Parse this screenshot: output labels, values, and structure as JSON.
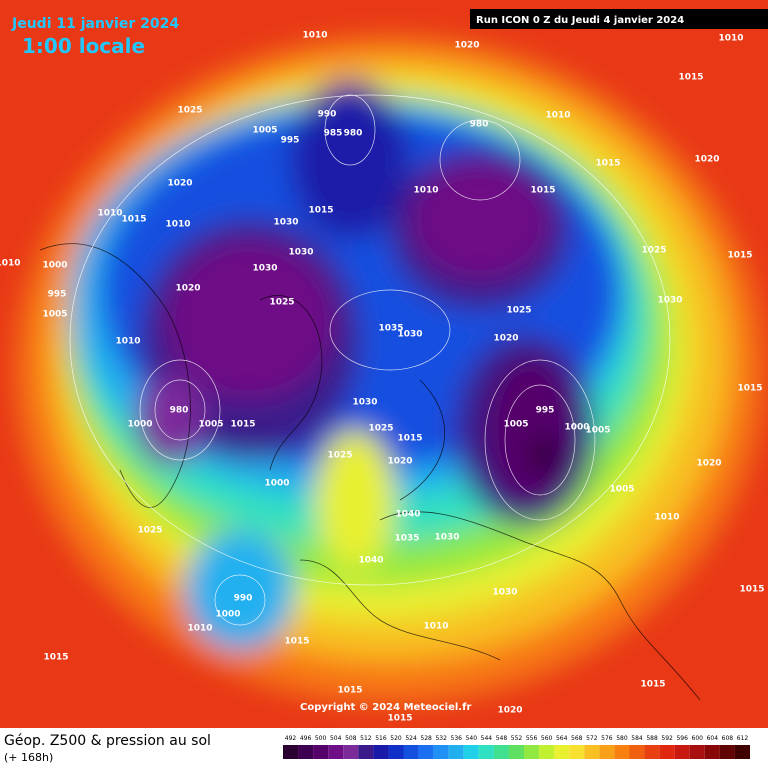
{
  "header": {
    "date": "Jeudi 11 janvier 2024",
    "time": "1:00 locale",
    "run": "Run ICON 0 Z du Jeudi 4 janvier 2024"
  },
  "footer": {
    "title": "Géop. Z500 & pression au sol",
    "lead": "(+ 168h)",
    "copyright": "Copyright © 2024 Meteociel.fr"
  },
  "scale": {
    "values": [
      492,
      496,
      500,
      504,
      508,
      512,
      516,
      520,
      524,
      528,
      532,
      536,
      540,
      544,
      548,
      552,
      556,
      560,
      564,
      568,
      572,
      576,
      580,
      584,
      588,
      592,
      596,
      600,
      604,
      608,
      612
    ],
    "colors": [
      "#2a0030",
      "#3d0050",
      "#55006a",
      "#6e0f85",
      "#7d2a9b",
      "#3a1a8a",
      "#1a1aa8",
      "#1030c8",
      "#1450e0",
      "#1a70f0",
      "#2090f5",
      "#20b0f0",
      "#20d0e8",
      "#30e0c0",
      "#40e090",
      "#60e060",
      "#90e840",
      "#c0f030",
      "#e8f030",
      "#f8e030",
      "#f8c020",
      "#f8a018",
      "#f88010",
      "#f06010",
      "#e84010",
      "#e02810",
      "#c81810",
      "#a81010",
      "#880808",
      "#600404",
      "#400000"
    ]
  },
  "isobar_labels": [
    1010,
    1020,
    1010,
    1015,
    1025,
    1005,
    995,
    990,
    985,
    980,
    980,
    1010,
    1020,
    1015,
    1030,
    1010,
    1015,
    1015,
    1020,
    1010,
    1015,
    1010,
    1000,
    995,
    1005,
    1030,
    1030,
    1025,
    1020,
    1010,
    1035,
    1030,
    1025,
    1020,
    980,
    1000,
    1015,
    1005,
    1030,
    1025,
    995,
    1005,
    1000,
    1015,
    1025,
    1020,
    1000,
    1005,
    1025,
    1040,
    1035,
    1030,
    1040,
    1030,
    1000,
    990,
    1010,
    1015,
    1010,
    1015,
    1015,
    1015,
    1020,
    1015,
    1015,
    1010,
    1020,
    1025,
    1030,
    1015,
    1010,
    1015,
    1005
  ]
}
